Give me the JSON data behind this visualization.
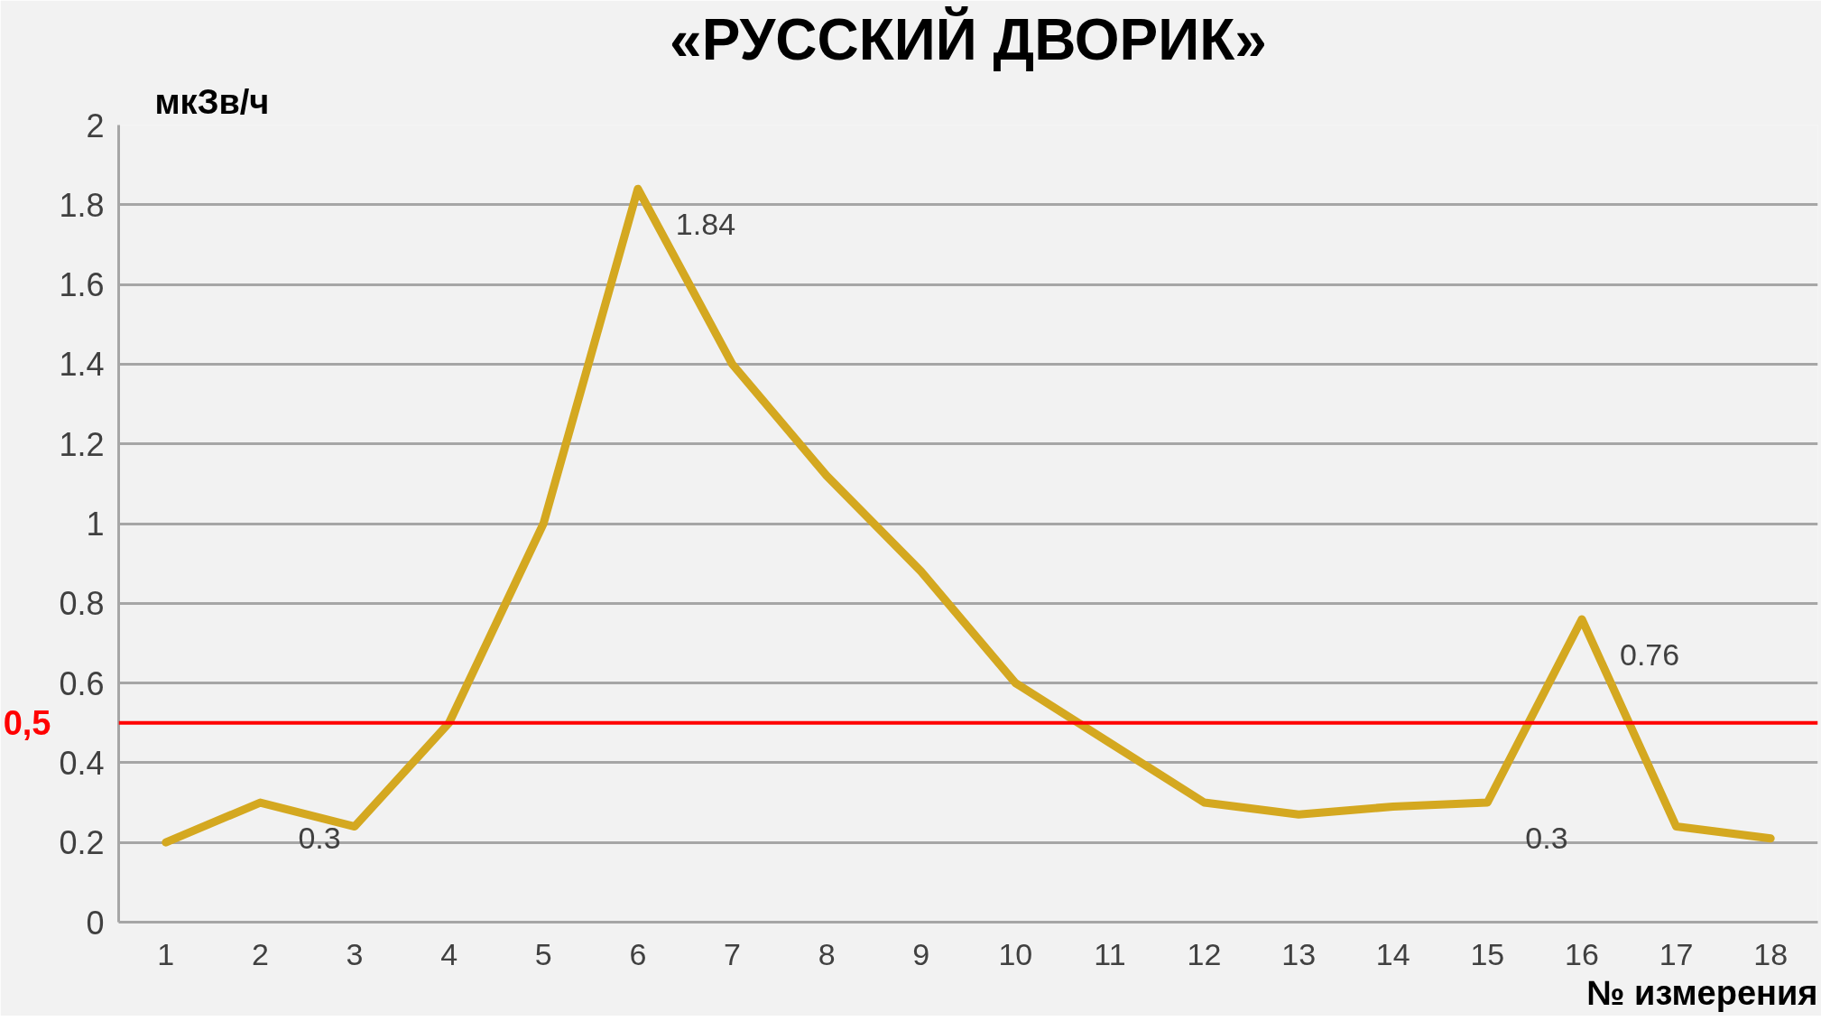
{
  "chart_data": {
    "type": "line",
    "title": "«РУССКИЙ ДВОРИК»",
    "xlabel": "№ измерения",
    "ylabel": "мкЗв/ч",
    "categories": [
      "1",
      "2",
      "3",
      "4",
      "5",
      "6",
      "7",
      "8",
      "9",
      "10",
      "11",
      "12",
      "13",
      "14",
      "15",
      "16",
      "17",
      "18"
    ],
    "series": [
      {
        "color": "#d4a820",
        "values": [
          0.2,
          0.3,
          0.24,
          0.5,
          1.0,
          1.84,
          1.4,
          1.12,
          0.88,
          0.6,
          0.45,
          0.3,
          0.27,
          0.29,
          0.3,
          0.76,
          0.24,
          0.21
        ],
        "value_labels": [
          null,
          "0.3",
          null,
          null,
          null,
          "1.84",
          null,
          null,
          null,
          null,
          null,
          null,
          null,
          null,
          "0.3",
          "0.76",
          null,
          null
        ]
      }
    ],
    "ylim": [
      0,
      2
    ],
    "yticks": [
      0,
      0.2,
      0.4,
      0.6,
      0.8,
      1,
      1.2,
      1.4,
      1.6,
      1.8,
      2
    ],
    "grid": "y",
    "ref_lines": [
      {
        "axis": "y",
        "value": 0.5,
        "label": "0,5",
        "color": "#ff0000"
      }
    ]
  }
}
